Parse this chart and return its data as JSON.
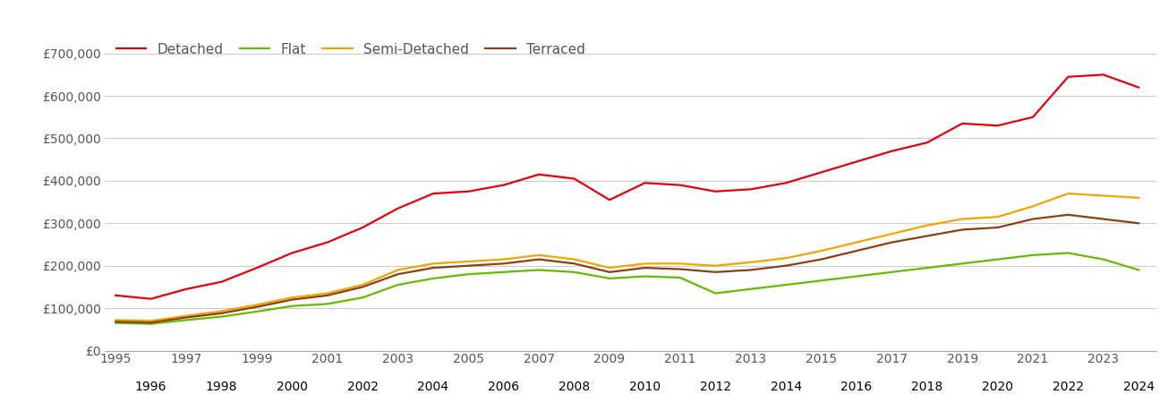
{
  "years": [
    1995,
    1996,
    1997,
    1998,
    1999,
    2000,
    2001,
    2002,
    2003,
    2004,
    2005,
    2006,
    2007,
    2008,
    2009,
    2010,
    2011,
    2012,
    2013,
    2014,
    2015,
    2016,
    2017,
    2018,
    2019,
    2020,
    2021,
    2022,
    2023,
    2024
  ],
  "detached": [
    130000,
    122000,
    145000,
    162000,
    195000,
    230000,
    255000,
    290000,
    335000,
    370000,
    375000,
    390000,
    415000,
    405000,
    355000,
    395000,
    390000,
    375000,
    380000,
    395000,
    420000,
    445000,
    470000,
    490000,
    535000,
    530000,
    550000,
    645000,
    650000,
    620000
  ],
  "flat": [
    65000,
    63000,
    72000,
    80000,
    92000,
    105000,
    110000,
    125000,
    155000,
    170000,
    180000,
    185000,
    190000,
    185000,
    170000,
    175000,
    172000,
    135000,
    145000,
    155000,
    165000,
    175000,
    185000,
    195000,
    205000,
    215000,
    225000,
    230000,
    215000,
    190000
  ],
  "semi_detached": [
    72000,
    70000,
    82000,
    93000,
    108000,
    125000,
    135000,
    155000,
    190000,
    205000,
    210000,
    215000,
    225000,
    215000,
    195000,
    205000,
    205000,
    200000,
    208000,
    218000,
    235000,
    255000,
    275000,
    295000,
    310000,
    315000,
    340000,
    370000,
    365000,
    360000
  ],
  "terraced": [
    68000,
    66000,
    78000,
    88000,
    103000,
    120000,
    130000,
    150000,
    180000,
    195000,
    200000,
    205000,
    215000,
    205000,
    185000,
    195000,
    192000,
    185000,
    190000,
    200000,
    215000,
    235000,
    255000,
    270000,
    285000,
    290000,
    310000,
    320000,
    310000,
    300000
  ],
  "colors": {
    "detached": "#e8000d",
    "flat": "#66bb00",
    "semi_detached": "#f0a500",
    "terraced": "#8B4010"
  },
  "ylim": [
    0,
    750000
  ],
  "yticks": [
    0,
    100000,
    200000,
    300000,
    400000,
    500000,
    600000,
    700000
  ],
  "ytick_labels": [
    "£0",
    "£100,000",
    "£200,000",
    "£300,000",
    "£400,000",
    "£500,000",
    "£600,000",
    "£700,000"
  ],
  "background_color": "#ffffff",
  "grid_color": "#cccccc",
  "line_width": 1.6,
  "text_color": "#555555",
  "legend_labels": [
    "Detached",
    "Flat",
    "Semi-Detached",
    "Terraced"
  ]
}
